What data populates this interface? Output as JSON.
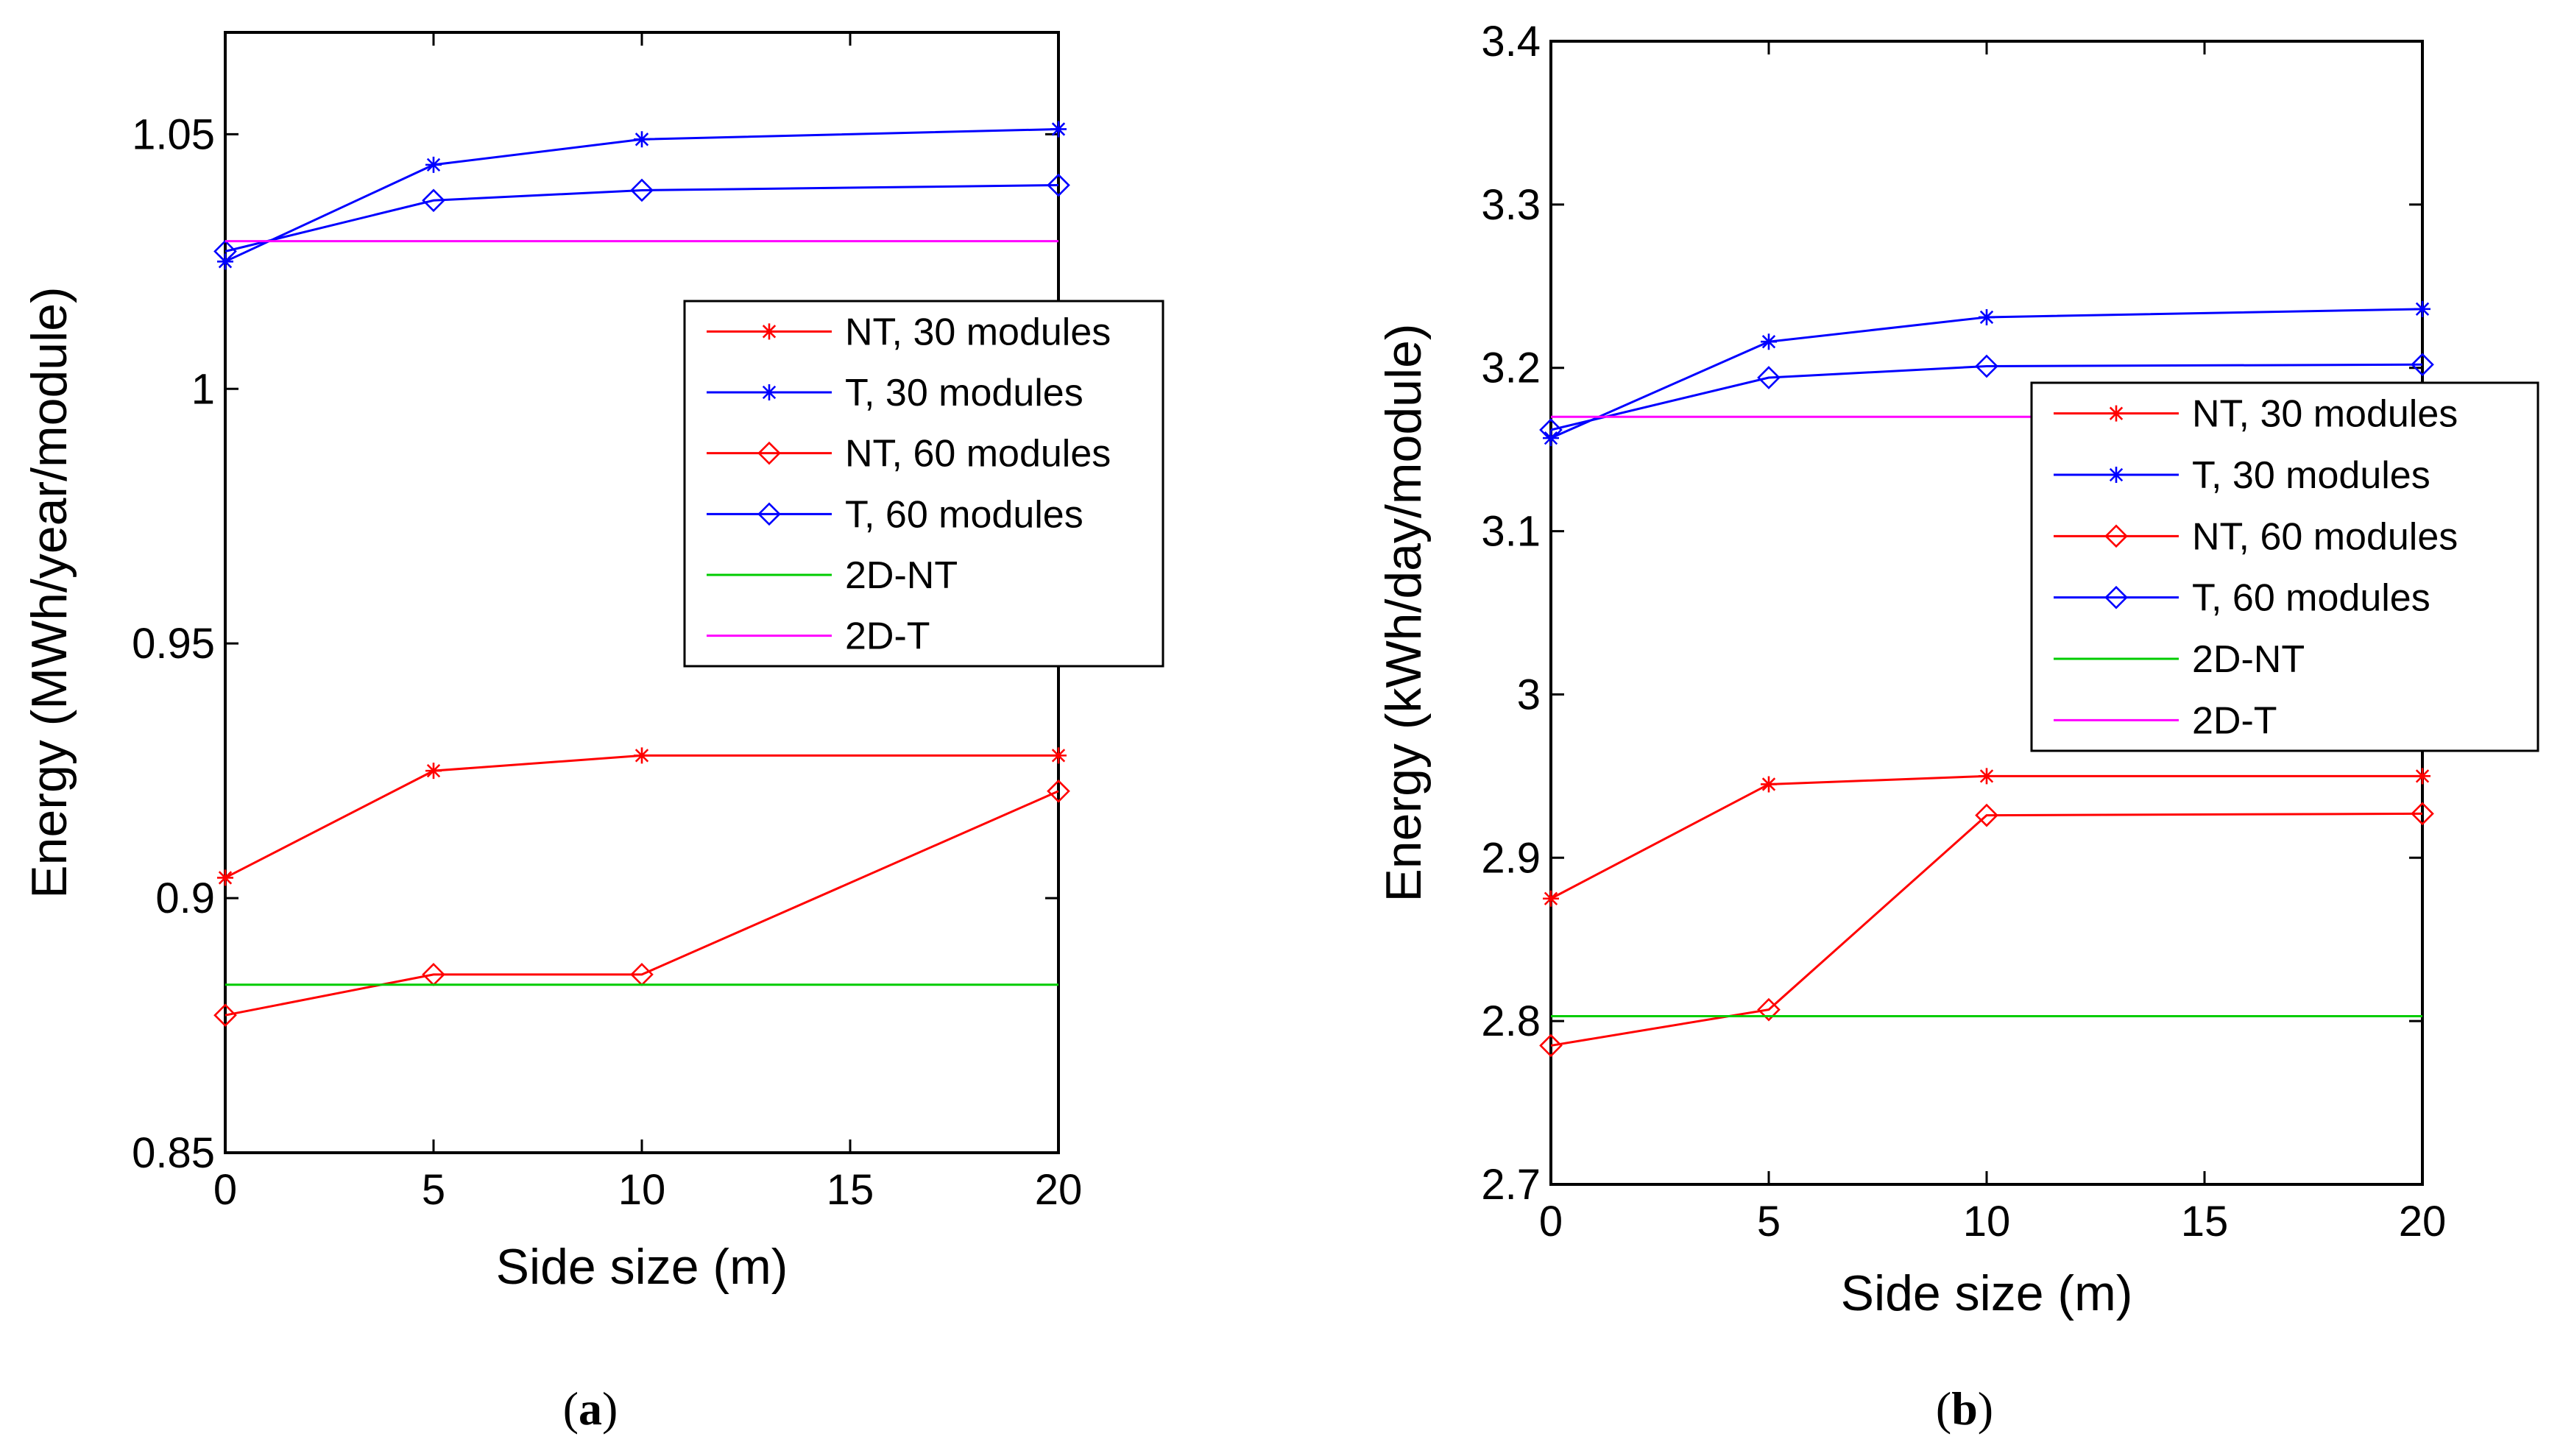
{
  "chart_data": [
    {
      "type": "line",
      "caption": "(a)",
      "caption_prefix": "(",
      "caption_letter": "a",
      "caption_suffix": ")",
      "xlabel": "Side size (m)",
      "ylabel": "Energy (MWh/year/module)",
      "xlim": [
        0,
        20
      ],
      "ylim": [
        0.85,
        1.07
      ],
      "xticks": [
        0,
        5,
        10,
        15,
        20
      ],
      "xtick_labels": [
        "0",
        "5",
        "10",
        "15",
        "20"
      ],
      "yticks": [
        0.85,
        0.9,
        0.95,
        1,
        1.05
      ],
      "ytick_labels": [
        "0.85",
        "0.9",
        "0.95",
        "1",
        "1.05"
      ],
      "legend_position": "right",
      "series": [
        {
          "name": "NT, 30 modules",
          "color": "#ff0000",
          "marker": "star",
          "x": [
            0,
            5,
            10,
            20
          ],
          "values": [
            0.904,
            0.925,
            0.928,
            0.928
          ]
        },
        {
          "name": "T, 30 modules",
          "color": "#0000ff",
          "marker": "star",
          "x": [
            0,
            5,
            10,
            20
          ],
          "values": [
            1.025,
            1.044,
            1.049,
            1.051
          ]
        },
        {
          "name": "NT, 60 modules",
          "color": "#ff0000",
          "marker": "diamond",
          "x": [
            0,
            5,
            10,
            20
          ],
          "values": [
            0.877,
            0.885,
            0.885,
            0.921
          ]
        },
        {
          "name": "T, 60 modules",
          "color": "#0000ff",
          "marker": "diamond",
          "x": [
            0,
            5,
            10,
            20
          ],
          "values": [
            1.027,
            1.037,
            1.039,
            1.04
          ]
        },
        {
          "name": "2D-NT",
          "color": "#00cc00",
          "marker": "none",
          "x": [
            0,
            20
          ],
          "values": [
            0.883,
            0.883
          ]
        },
        {
          "name": "2D-T",
          "color": "#ff00ff",
          "marker": "none",
          "x": [
            0,
            20
          ],
          "values": [
            1.029,
            1.029
          ]
        }
      ]
    },
    {
      "type": "line",
      "caption": "(b)",
      "caption_prefix": "(",
      "caption_letter": "b",
      "caption_suffix": ")",
      "xlabel": "Side size (m)",
      "ylabel": "Energy (kWh/day/module)",
      "xlim": [
        0,
        20
      ],
      "ylim": [
        2.7,
        3.4
      ],
      "xticks": [
        0,
        5,
        10,
        15,
        20
      ],
      "xtick_labels": [
        "0",
        "5",
        "10",
        "15",
        "20"
      ],
      "yticks": [
        2.7,
        2.8,
        2.9,
        3.0,
        3.1,
        3.2,
        3.3,
        3.4
      ],
      "ytick_labels": [
        "2.7",
        "2.8",
        "2.9",
        "3",
        "3.1",
        "3.2",
        "3.3",
        "3.4"
      ],
      "legend_position": "right",
      "series": [
        {
          "name": "NT, 30 modules",
          "color": "#ff0000",
          "marker": "star",
          "x": [
            0,
            5,
            10,
            20
          ],
          "values": [
            2.875,
            2.945,
            2.95,
            2.95
          ]
        },
        {
          "name": "T, 30 modules",
          "color": "#0000ff",
          "marker": "star",
          "x": [
            0,
            5,
            10,
            20
          ],
          "values": [
            3.157,
            3.216,
            3.231,
            3.236
          ]
        },
        {
          "name": "NT, 60 modules",
          "color": "#ff0000",
          "marker": "diamond",
          "x": [
            0,
            5,
            10,
            20
          ],
          "values": [
            2.785,
            2.807,
            2.926,
            2.927
          ]
        },
        {
          "name": "T, 60 modules",
          "color": "#0000ff",
          "marker": "diamond",
          "x": [
            0,
            5,
            10,
            20
          ],
          "values": [
            3.162,
            3.194,
            3.201,
            3.202
          ]
        },
        {
          "name": "2D-NT",
          "color": "#00cc00",
          "marker": "none",
          "x": [
            0,
            20
          ],
          "values": [
            2.803,
            2.803
          ]
        },
        {
          "name": "2D-T",
          "color": "#ff00ff",
          "marker": "none",
          "x": [
            0,
            20
          ],
          "values": [
            3.17,
            3.17
          ]
        }
      ]
    }
  ]
}
